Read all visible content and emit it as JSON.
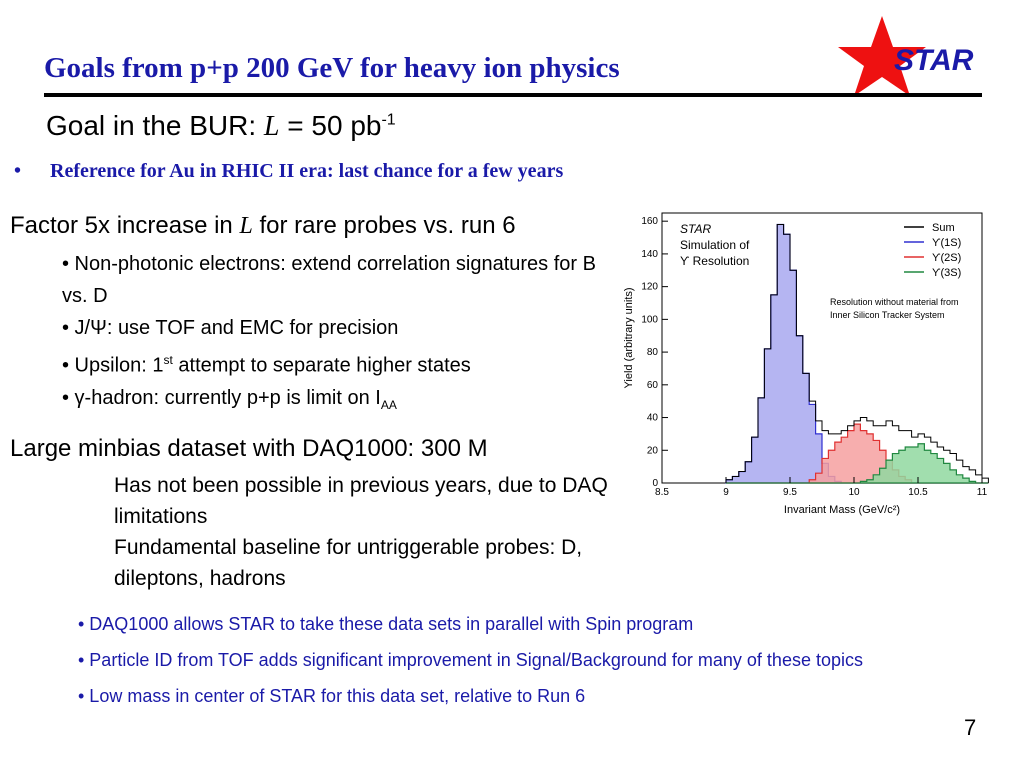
{
  "slide": {
    "title": "Goals from p+p 200 GeV for heavy ion physics",
    "goal": {
      "prefix": "Goal in the BUR:",
      "symbol": "L",
      "equals": "=",
      "value": "50 pb",
      "exponent": "-1"
    },
    "bullet_ref": {
      "marker": "•",
      "text": "Reference for Au in RHIC II era: last chance for a few years"
    },
    "factor": {
      "prefix": "Factor 5x increase in",
      "symbol": "L",
      "suffix": "for rare probes vs. run 6"
    },
    "sub_bullets": [
      {
        "text": "• Non-photonic electrons: extend correlation signatures for B vs. D"
      },
      {
        "text": "• J/Ψ: use TOF and EMC for precision"
      },
      {
        "pre": "• Upsilon: 1",
        "sup": "st",
        "post": " attempt to separate higher states"
      },
      {
        "pre": "• γ-hadron: currently p+p is limit on I",
        "sub": "AA"
      }
    ],
    "minbias": {
      "title": "Large minbias dataset with DAQ1000: 300 M",
      "notes": [
        "Has not been possible in previous years, due to DAQ limitations",
        "Fundamental baseline for untriggerable probes: D, dileptons, hadrons"
      ]
    },
    "blue_notes": [
      "• DAQ1000 allows STAR to take these data sets in parallel with Spin program",
      "• Particle ID from TOF adds significant improvement in Signal/Background for many of these topics",
      "• Low mass in center of STAR for this data set, relative to Run 6"
    ],
    "page_number": "7",
    "logo_text": "STAR"
  },
  "chart_data": {
    "type": "histogram",
    "xlabel": "Invariant Mass (GeV/c²)",
    "ylabel": "Yield (arbitrary units)",
    "xlim": [
      8.5,
      11
    ],
    "ylim": [
      0,
      165
    ],
    "xticks": [
      8.5,
      9,
      9.5,
      10,
      10.5,
      11
    ],
    "yticks": [
      0,
      20,
      40,
      60,
      80,
      100,
      120,
      140,
      160
    ],
    "annotation_lines": [
      "STAR",
      "Simulation of",
      "ϒ Resolution"
    ],
    "note_lines": [
      "Resolution without material from",
      "Inner Silicon Tracker System"
    ],
    "bin_edges_start": 9.0,
    "bin_width": 0.05,
    "series": [
      {
        "name": "Sum",
        "color": "#000000",
        "fill": "none",
        "values": [
          2,
          4,
          7,
          13,
          28,
          52,
          82,
          115,
          158,
          152,
          130,
          90,
          67,
          50,
          38,
          32,
          30,
          30,
          32,
          35,
          38,
          40,
          38,
          35,
          35,
          38,
          35,
          32,
          32,
          28,
          30,
          28,
          25,
          22,
          20,
          18,
          14,
          10,
          8,
          5,
          3
        ]
      },
      {
        "name": "ϒ(1S)",
        "color": "#3030d0",
        "fill": "#a8a8f0",
        "values": [
          2,
          4,
          7,
          13,
          28,
          52,
          82,
          115,
          158,
          152,
          130,
          90,
          67,
          48,
          30,
          12,
          4,
          1,
          0,
          0,
          0,
          0,
          0,
          0,
          0,
          0,
          0,
          0,
          0,
          0,
          0,
          0,
          0,
          0,
          0,
          0,
          0,
          0,
          0,
          0,
          0
        ]
      },
      {
        "name": "ϒ(2S)",
        "color": "#e03030",
        "fill": "#f6a0a0",
        "values": [
          0,
          0,
          0,
          0,
          0,
          0,
          0,
          0,
          0,
          0,
          0,
          0,
          0,
          2,
          6,
          15,
          20,
          25,
          28,
          32,
          36,
          32,
          30,
          26,
          20,
          14,
          8,
          4,
          2,
          0,
          0,
          0,
          0,
          0,
          0,
          0,
          0,
          0,
          0,
          0,
          0
        ]
      },
      {
        "name": "ϒ(3S)",
        "color": "#208840",
        "fill": "#90d8a0",
        "values": [
          0,
          0,
          0,
          0,
          0,
          0,
          0,
          0,
          0,
          0,
          0,
          0,
          0,
          0,
          0,
          0,
          0,
          0,
          0,
          0,
          0,
          1,
          2,
          5,
          9,
          14,
          18,
          20,
          22,
          22,
          24,
          20,
          18,
          15,
          12,
          8,
          5,
          3,
          1,
          0,
          0
        ]
      }
    ]
  }
}
